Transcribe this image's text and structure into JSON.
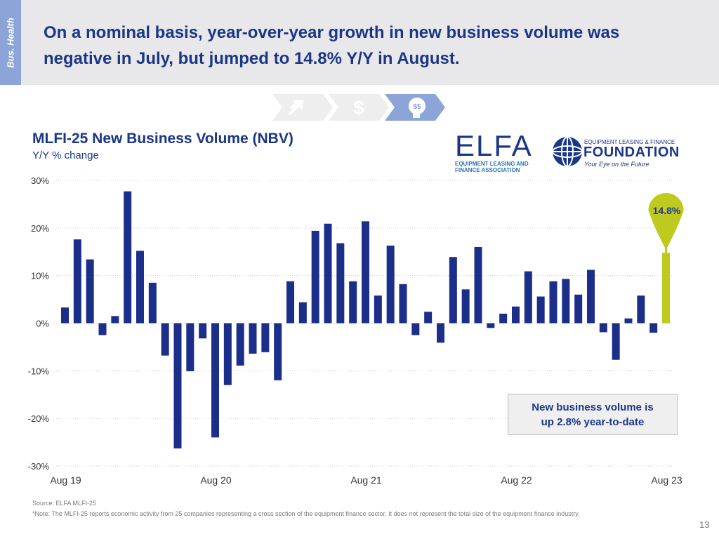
{
  "header": {
    "side_tab": "Bus. Health",
    "title": "On a nominal basis, year-over-year growth in new business volume was negative in July, but jumped to 14.8% Y/Y in August."
  },
  "logos": {
    "elfa_mark": "ELFA",
    "elfa_line1": "EQUIPMENT LEASING AND",
    "elfa_line2": "FINANCE ASSOCIATION",
    "foundation_small": "EQUIPMENT LEASING & FINANCE",
    "foundation_big": "FOUNDATION",
    "foundation_tagline": "Your Eye on the Future"
  },
  "steps": {
    "dollar_glyph": "$",
    "head_glyph": "$$"
  },
  "callout": {
    "line1": "New business volume is",
    "line2": "up 2.8% year-to-date"
  },
  "footer": {
    "source": "Source: ELFA MLFI-25",
    "note": "*Note: The MLFI-25 reports economic activity from 25 companies representing a cross section of the equipment finance sector. It does not represent the total size of the equipment finance industry.",
    "page_number": "13"
  },
  "colors": {
    "bar": "#1b2f8a",
    "highlight": "#bfca1f",
    "title": "#1b3687"
  },
  "chart_data": {
    "type": "bar",
    "title": "MLFI-25 New Business Volume (NBV)",
    "subtitle": "Y/Y % change",
    "ylim": [
      -30,
      30
    ],
    "yticks": [
      30,
      20,
      10,
      0,
      -10,
      -20,
      -30
    ],
    "ytick_labels": [
      "30%",
      "20%",
      "10%",
      "0%",
      "-10%",
      "-20%",
      "-30%"
    ],
    "xtick_labels": [
      {
        "label": "Aug 19",
        "index": 0
      },
      {
        "label": "Aug 20",
        "index": 12
      },
      {
        "label": "Aug 21",
        "index": 24
      },
      {
        "label": "Aug 22",
        "index": 36
      },
      {
        "label": "Aug 23",
        "index": 48
      }
    ],
    "categories": [
      "Aug 19",
      "Sep 19",
      "Oct 19",
      "Nov 19",
      "Dec 19",
      "Jan 20",
      "Feb 20",
      "Mar 20",
      "Apr 20",
      "May 20",
      "Jun 20",
      "Jul 20",
      "Aug 20",
      "Sep 20",
      "Oct 20",
      "Nov 20",
      "Dec 20",
      "Jan 21",
      "Feb 21",
      "Mar 21",
      "Apr 21",
      "May 21",
      "Jun 21",
      "Jul 21",
      "Aug 21",
      "Sep 21",
      "Oct 21",
      "Nov 21",
      "Dec 21",
      "Jan 22",
      "Feb 22",
      "Mar 22",
      "Apr 22",
      "May 22",
      "Jun 22",
      "Jul 22",
      "Aug 22",
      "Sep 22",
      "Oct 22",
      "Nov 22",
      "Dec 22",
      "Jan 23",
      "Feb 23",
      "Mar 23",
      "Apr 23",
      "May 23",
      "Jun 23",
      "Jul 23",
      "Aug 23"
    ],
    "values": [
      3.3,
      17.6,
      13.4,
      -2.5,
      1.5,
      27.7,
      15.2,
      8.5,
      -6.8,
      -26.3,
      -10.1,
      -3.2,
      -24.0,
      -13.0,
      -8.9,
      -6.4,
      -6.1,
      -12.0,
      8.8,
      4.4,
      19.4,
      20.9,
      16.8,
      8.8,
      21.4,
      5.8,
      16.3,
      8.2,
      -2.5,
      2.4,
      -4.1,
      13.9,
      7.1,
      16.0,
      -1.0,
      2.0,
      3.5,
      10.9,
      5.6,
      8.8,
      9.3,
      6.0,
      11.2,
      -1.9,
      -7.7,
      1.0,
      5.8,
      -2.0,
      14.8
    ],
    "highlight": {
      "index": 48,
      "label": "14.8%"
    }
  }
}
